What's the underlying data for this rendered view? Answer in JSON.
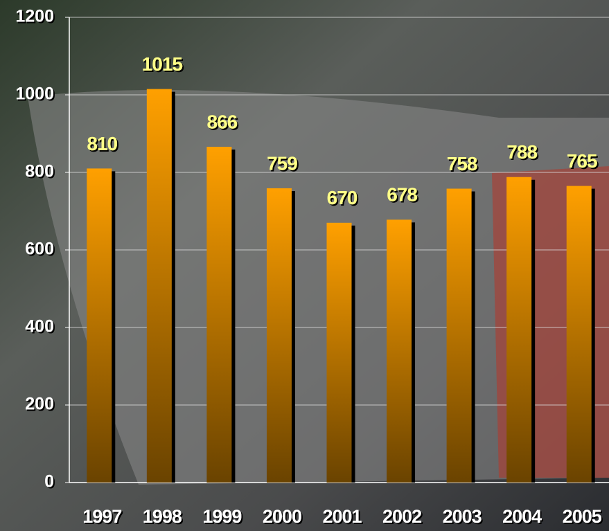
{
  "chart_data": {
    "type": "bar",
    "categories": [
      "1997",
      "1998",
      "1999",
      "2000",
      "2001",
      "2002",
      "2003",
      "2004",
      "2005"
    ],
    "values": [
      810,
      1015,
      866,
      759,
      670,
      678,
      758,
      788,
      765
    ],
    "color": "#ff9900",
    "ylim": [
      0,
      1200
    ],
    "yticks": [
      0,
      200,
      400,
      600,
      800,
      1000,
      1200
    ],
    "grid": true
  }
}
